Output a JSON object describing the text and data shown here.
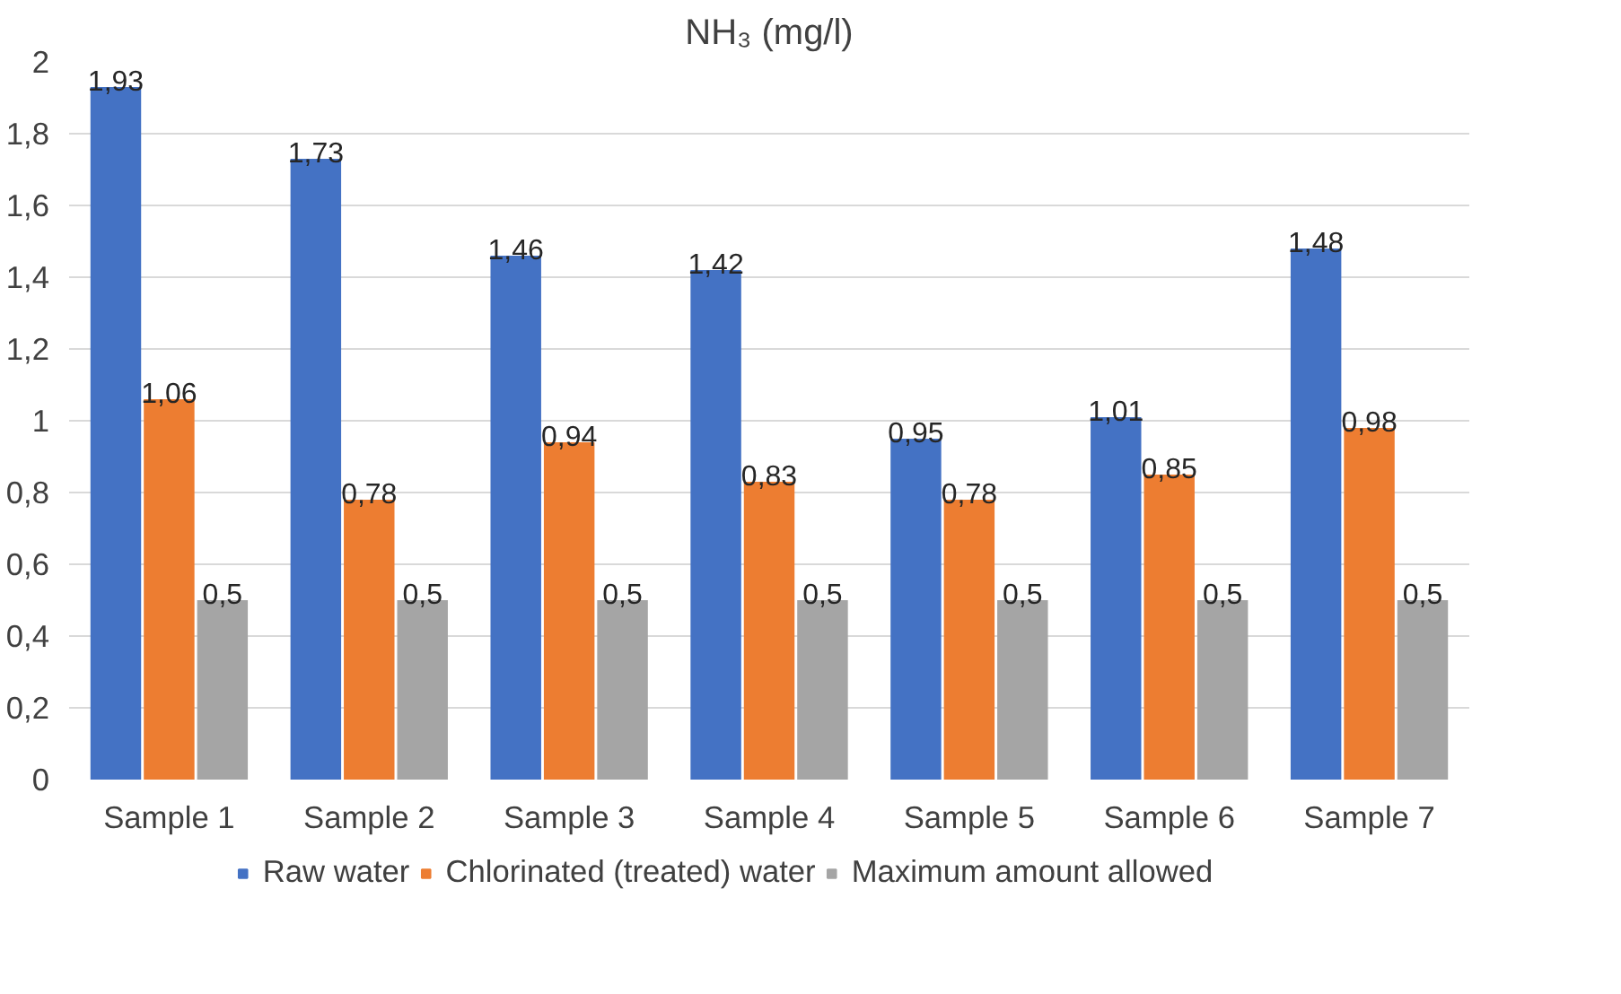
{
  "chart_data": {
    "type": "bar",
    "title": "NH₃ (mg/l)",
    "categories": [
      "Sample 1",
      "Sample 2",
      "Sample 3",
      "Sample 4",
      "Sample 5",
      "Sample 6",
      "Sample 7"
    ],
    "series": [
      {
        "name": "Raw water",
        "color": "#4472c4",
        "values": [
          1.93,
          1.73,
          1.46,
          1.42,
          0.95,
          1.01,
          1.48
        ],
        "value_labels": [
          "1,93",
          "1,73",
          "1,46",
          "1,42",
          "0,95",
          "1,01",
          "1,48"
        ]
      },
      {
        "name": "Chlorinated (treated) water",
        "color": "#ed7d31",
        "values": [
          1.06,
          0.78,
          0.94,
          0.83,
          0.78,
          0.85,
          0.98
        ],
        "value_labels": [
          "1,06",
          "0,78",
          "0,94",
          "0,83",
          "0,78",
          "0,85",
          "0,98"
        ]
      },
      {
        "name": "Maximum amount allowed",
        "color": "#a5a5a5",
        "values": [
          0.5,
          0.5,
          0.5,
          0.5,
          0.5,
          0.5,
          0.5
        ],
        "value_labels": [
          "0,5",
          "0,5",
          "0,5",
          "0,5",
          "0,5",
          "0,5",
          "0,5"
        ]
      }
    ],
    "ylim": [
      0,
      2
    ],
    "yticks": [
      0,
      {
        "value": 0.2,
        "label": "0,2"
      },
      {
        "value": 0.4,
        "label": "0,4"
      },
      {
        "value": 0.6,
        "label": "0,6"
      },
      {
        "value": 0.8,
        "label": "0,8"
      },
      1,
      {
        "value": 1.2,
        "label": "1,2"
      },
      {
        "value": 1.4,
        "label": "1,4"
      },
      {
        "value": 1.6,
        "label": "1,6"
      },
      {
        "value": 1.8,
        "label": "1,8"
      },
      2
    ],
    "grid": "y",
    "legend": "bottom"
  }
}
